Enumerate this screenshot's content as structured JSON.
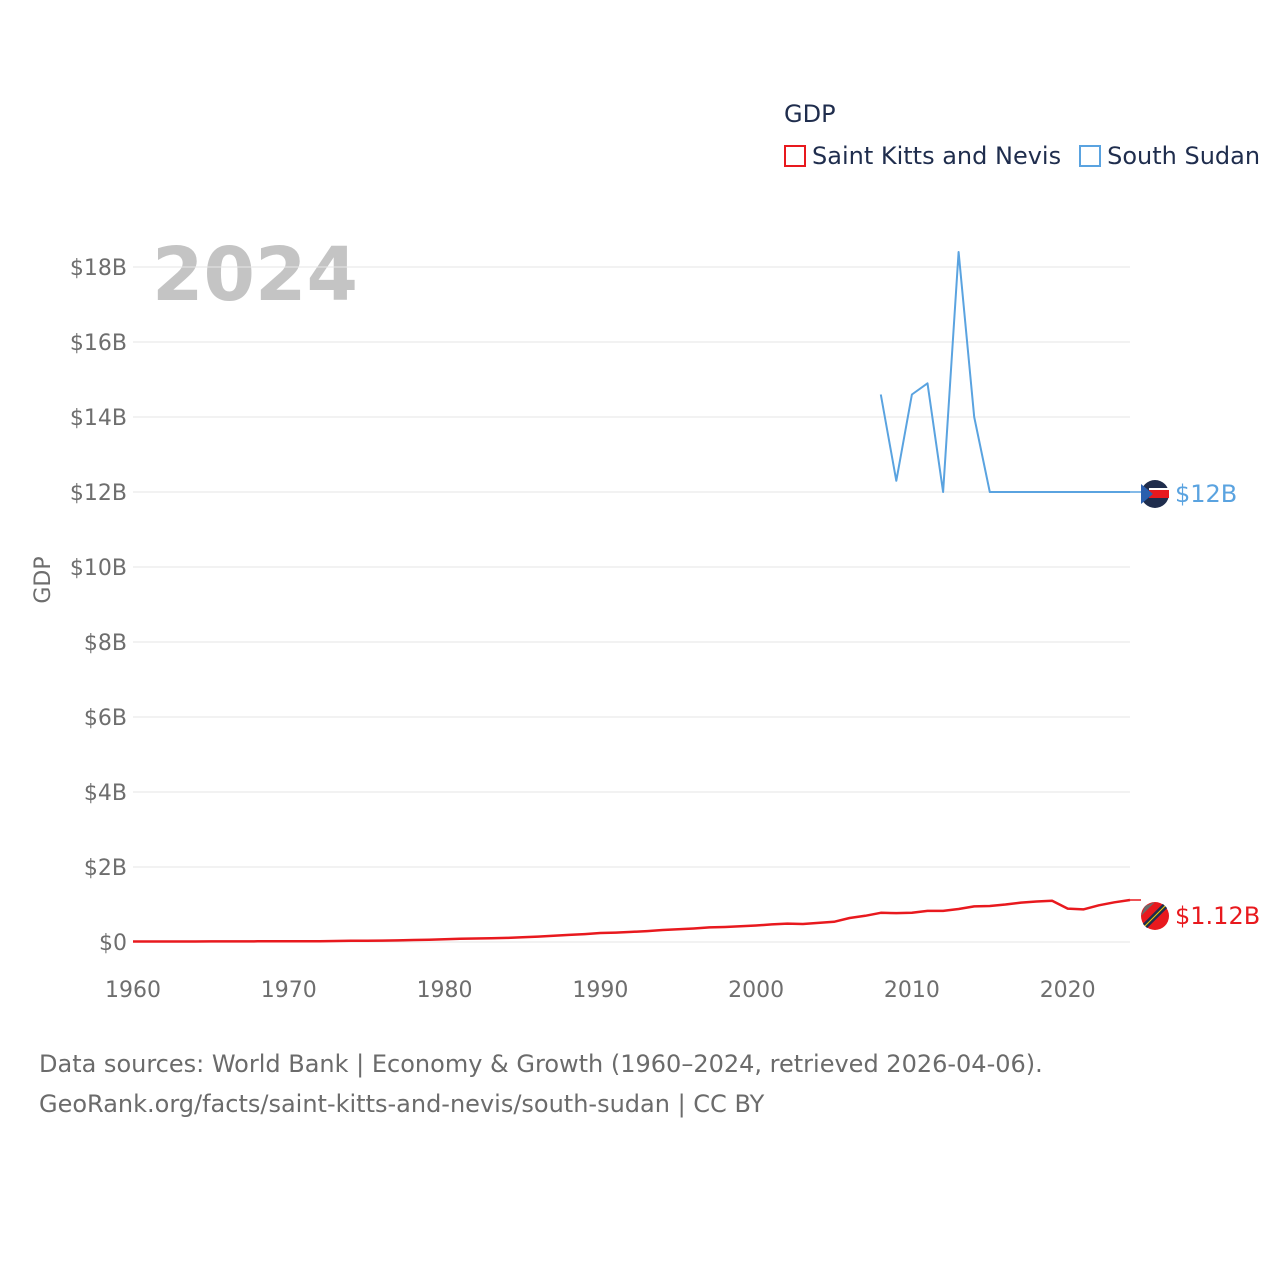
{
  "chart_data": {
    "type": "line",
    "big_year_label": "2024",
    "ylabel": "GDP",
    "xlabel": "",
    "xlim": [
      1960,
      2024
    ],
    "ylim": [
      0,
      18500000000
    ],
    "x_ticks": [
      1960,
      1970,
      1980,
      1990,
      2000,
      2010,
      2020
    ],
    "x_tick_labels": [
      "1960",
      "1970",
      "1980",
      "1990",
      "2000",
      "2010",
      "2020"
    ],
    "y_ticks": [
      0,
      2000000000,
      4000000000,
      6000000000,
      8000000000,
      10000000000,
      12000000000,
      14000000000,
      16000000000,
      18000000000
    ],
    "y_tick_labels": [
      "$0",
      "$2B",
      "$4B",
      "$6B",
      "$8B",
      "$10B",
      "$12B",
      "$14B",
      "$16B",
      "$18B"
    ],
    "legend_title": "GDP",
    "legend_position": "top-right",
    "grid": true,
    "series": [
      {
        "name": "Saint Kitts and Nevis",
        "color": "#e8191e",
        "end_label": "$1.12B",
        "flag": "saint-kitts-and-nevis-flag-icon",
        "x": [
          1960,
          1961,
          1962,
          1963,
          1964,
          1965,
          1966,
          1967,
          1968,
          1969,
          1970,
          1971,
          1972,
          1973,
          1974,
          1975,
          1976,
          1977,
          1978,
          1979,
          1980,
          1981,
          1982,
          1983,
          1984,
          1985,
          1986,
          1987,
          1988,
          1989,
          1990,
          1991,
          1992,
          1993,
          1994,
          1995,
          1996,
          1997,
          1998,
          1999,
          2000,
          2001,
          2002,
          2003,
          2004,
          2005,
          2006,
          2007,
          2008,
          2009,
          2010,
          2011,
          2012,
          2013,
          2014,
          2015,
          2016,
          2017,
          2018,
          2019,
          2020,
          2021,
          2022,
          2023,
          2024
        ],
        "y": [
          12000000,
          12500000,
          13000000,
          13500000,
          14000000,
          15000000,
          16000000,
          17000000,
          18000000,
          19000000,
          20000000,
          21000000,
          22000000,
          27000000,
          32000000,
          34000000,
          38000000,
          44000000,
          52000000,
          62000000,
          75000000,
          85000000,
          92000000,
          98000000,
          110000000,
          125000000,
          145000000,
          165000000,
          190000000,
          210000000,
          240000000,
          250000000,
          270000000,
          290000000,
          320000000,
          340000000,
          360000000,
          390000000,
          400000000,
          420000000,
          440000000,
          470000000,
          490000000,
          480000000,
          510000000,
          540000000,
          640000000,
          700000000,
          780000000,
          770000000,
          780000000,
          830000000,
          830000000,
          880000000,
          950000000,
          960000000,
          1000000000,
          1050000000,
          1080000000,
          1100000000,
          890000000,
          870000000,
          980000000,
          1060000000,
          1120000000
        ]
      },
      {
        "name": "South Sudan",
        "color": "#5aa3e0",
        "end_label": "$12B",
        "flag": "south-sudan-flag-icon",
        "x": [
          2008,
          2009,
          2010,
          2011,
          2012,
          2013,
          2014,
          2015,
          2016,
          2017,
          2018,
          2019,
          2020,
          2021,
          2022,
          2023,
          2024
        ],
        "y": [
          14600000000,
          12300000000,
          14600000000,
          14900000000,
          12000000000,
          18400000000,
          14000000000,
          12000000000,
          12000000000,
          12000000000,
          12000000000,
          12000000000,
          12000000000,
          12000000000,
          12000000000,
          12000000000,
          12000000000
        ]
      }
    ]
  },
  "footer": {
    "source_line": "Data sources: World Bank | Economy & Growth (1960–2024, retrieved 2026-04-06).",
    "link_text": "GeoRank.org/facts/saint-kitts-and-nevis/south-sudan",
    "license": " | CC BY"
  }
}
